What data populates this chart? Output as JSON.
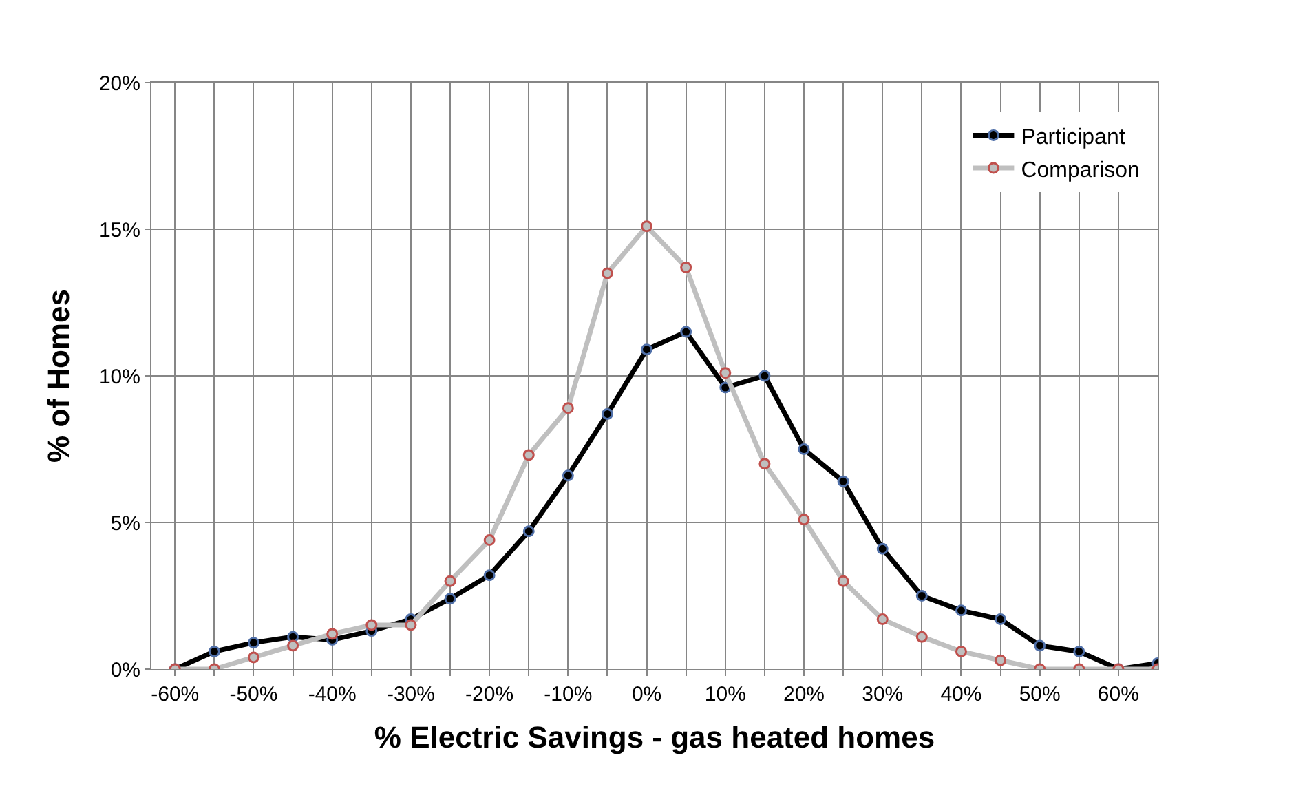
{
  "chart_data": {
    "type": "line",
    "xlabel": "% Electric Savings - gas heated homes",
    "ylabel": "% of Homes",
    "x": [
      -60,
      -55,
      -50,
      -45,
      -40,
      -35,
      -30,
      -25,
      -20,
      -15,
      -10,
      -5,
      0,
      5,
      10,
      15,
      20,
      25,
      30,
      35,
      40,
      45,
      50,
      55,
      60,
      65
    ],
    "series": [
      {
        "name": "Participant",
        "color": "#000000",
        "values": [
          0,
          0.6,
          0.9,
          1.1,
          1.0,
          1.3,
          1.7,
          2.4,
          3.2,
          4.7,
          6.6,
          8.7,
          10.9,
          11.5,
          9.6,
          10.0,
          7.5,
          6.4,
          4.1,
          2.5,
          2.0,
          1.7,
          0.8,
          0.6,
          0,
          0.2
        ]
      },
      {
        "name": "Comparison",
        "color": "#bfbfbf",
        "values": [
          0,
          0,
          0.4,
          0.8,
          1.2,
          1.5,
          1.5,
          3.0,
          4.4,
          7.3,
          8.9,
          13.5,
          15.1,
          13.7,
          10.1,
          7.0,
          5.1,
          3.0,
          1.7,
          1.1,
          0.6,
          0.3,
          0,
          0,
          0,
          0
        ]
      }
    ],
    "xlim": [
      -63,
      65
    ],
    "xticks": [
      {
        "value": -60,
        "label": "-60%"
      },
      {
        "value": -55,
        "label": null
      },
      {
        "value": -50,
        "label": "-50%"
      },
      {
        "value": -45,
        "label": null
      },
      {
        "value": -40,
        "label": "-40%"
      },
      {
        "value": -35,
        "label": null
      },
      {
        "value": -30,
        "label": "-30%"
      },
      {
        "value": -25,
        "label": null
      },
      {
        "value": -20,
        "label": "-20%"
      },
      {
        "value": -15,
        "label": null
      },
      {
        "value": -10,
        "label": "-10%"
      },
      {
        "value": -5,
        "label": null
      },
      {
        "value": 0,
        "label": "0%"
      },
      {
        "value": 5,
        "label": null
      },
      {
        "value": 10,
        "label": "10%"
      },
      {
        "value": 15,
        "label": null
      },
      {
        "value": 20,
        "label": "20%"
      },
      {
        "value": 25,
        "label": null
      },
      {
        "value": 30,
        "label": "30%"
      },
      {
        "value": 35,
        "label": null
      },
      {
        "value": 40,
        "label": "40%"
      },
      {
        "value": 45,
        "label": null
      },
      {
        "value": 50,
        "label": "50%"
      },
      {
        "value": 55,
        "label": null
      },
      {
        "value": 60,
        "label": "60%"
      }
    ],
    "ylim": [
      0,
      20
    ],
    "yticks": [
      {
        "value": 0,
        "label": "0%"
      },
      {
        "value": 5,
        "label": "5%"
      },
      {
        "value": 10,
        "label": "10%"
      },
      {
        "value": 15,
        "label": "15%"
      },
      {
        "value": 20,
        "label": "20%"
      }
    ],
    "grid": true,
    "legend": "top right",
    "marker": "circle",
    "line_style": "solid"
  }
}
